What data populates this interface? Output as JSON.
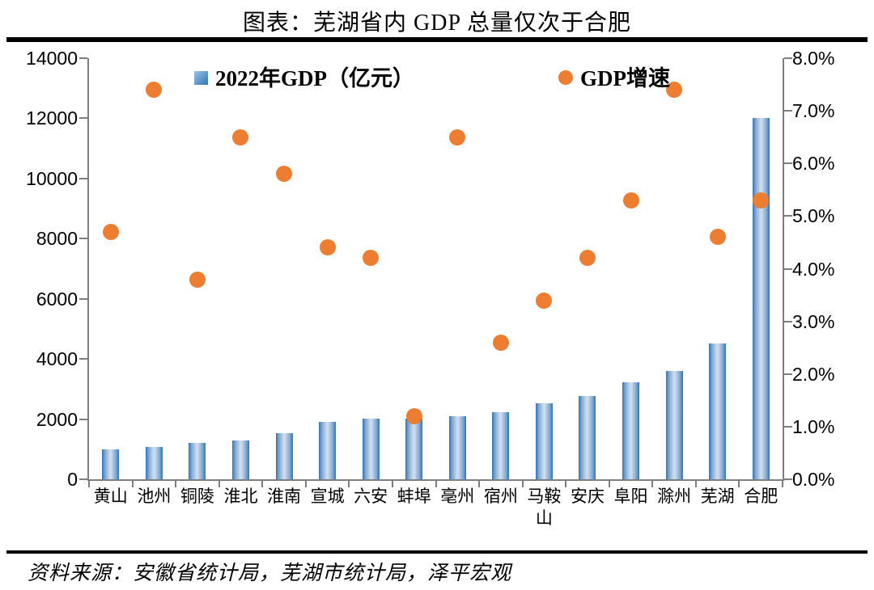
{
  "header": {
    "title": "图表：芜湖省内 GDP 总量仅次于合肥"
  },
  "footer": {
    "source": "资料来源：安徽省统计局，芜湖市统计局，泽平宏观"
  },
  "colors": {
    "bar_blue_dark": "#2E74B5",
    "bar_blue_light": "#D5E1F0",
    "dot_orange": "#ED7D31",
    "axis_gray": "#7F7F7F",
    "text_black": "#000000",
    "divider_black": "#000000"
  },
  "chart_data": {
    "type": "bar",
    "combo": "bar + scatter (dual axis)",
    "title": "图表：芜湖省内 GDP 总量仅次于合肥",
    "grid": false,
    "legend_position": "top-inside",
    "categories": [
      "黄山",
      "池州",
      "铜陵",
      "淮北",
      "淮南",
      "宣城",
      "六安",
      "蚌埠",
      "亳州",
      "宿州",
      "马鞍山",
      "安庆",
      "阜阳",
      "滁州",
      "芜湖",
      "合肥"
    ],
    "series": [
      {
        "name": "2022年GDP（亿元）",
        "type": "bar",
        "axis": "left",
        "values": [
          1002,
          1083,
          1209,
          1303,
          1541,
          1914,
          2005,
          2011,
          2101,
          2225,
          2521,
          2767,
          3233,
          3610,
          4502,
          12013
        ]
      },
      {
        "name": "GDP增速",
        "type": "scatter",
        "axis": "right",
        "unit": "%",
        "values": [
          4.7,
          7.4,
          3.8,
          6.5,
          5.8,
          4.4,
          4.2,
          1.2,
          6.5,
          2.6,
          3.4,
          4.2,
          5.3,
          7.4,
          4.6,
          5.3
        ]
      }
    ],
    "left_axis": {
      "min": 0,
      "max": 14000,
      "step": 2000,
      "tick_labels": [
        "14000",
        "12000",
        "10000",
        "8000",
        "6000",
        "4000",
        "2000",
        "0"
      ]
    },
    "right_axis": {
      "min": 0,
      "max": 8,
      "step": 1,
      "tick_labels": [
        "8.0%",
        "7.0%",
        "6.0%",
        "5.0%",
        "4.0%",
        "3.0%",
        "2.0%",
        "1.0%",
        "0.0%"
      ]
    }
  }
}
